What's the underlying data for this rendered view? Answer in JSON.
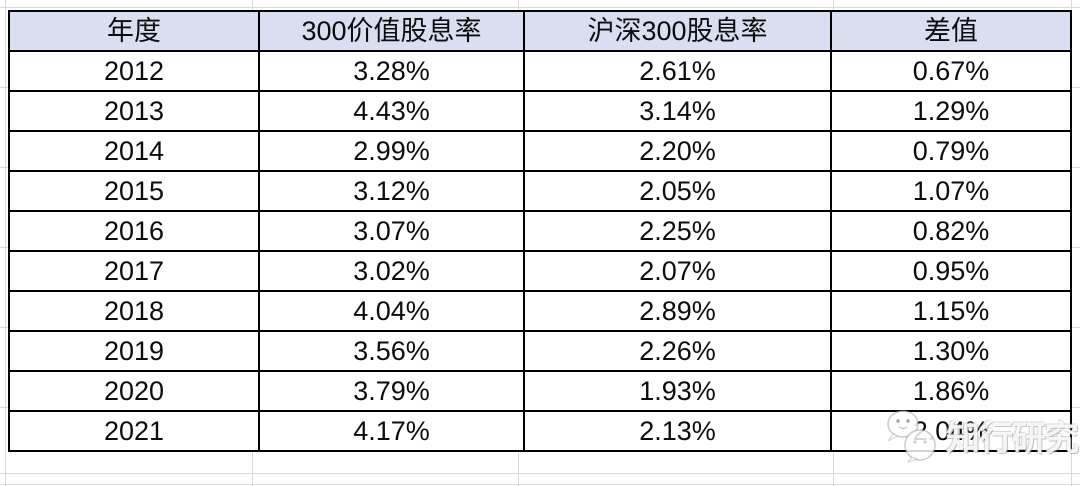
{
  "table": {
    "headers": [
      "年度",
      "300价值股息率",
      "沪深300股息率",
      "差值"
    ],
    "rows": [
      {
        "year": "2012",
        "value300": "3.28%",
        "csi300": "2.61%",
        "diff": "0.67%"
      },
      {
        "year": "2013",
        "value300": "4.43%",
        "csi300": "3.14%",
        "diff": "1.29%"
      },
      {
        "year": "2014",
        "value300": "2.99%",
        "csi300": "2.20%",
        "diff": "0.79%"
      },
      {
        "year": "2015",
        "value300": "3.12%",
        "csi300": "2.05%",
        "diff": "1.07%"
      },
      {
        "year": "2016",
        "value300": "3.07%",
        "csi300": "2.25%",
        "diff": "0.82%"
      },
      {
        "year": "2017",
        "value300": "3.02%",
        "csi300": "2.07%",
        "diff": "0.95%"
      },
      {
        "year": "2018",
        "value300": "4.04%",
        "csi300": "2.89%",
        "diff": "1.15%"
      },
      {
        "year": "2019",
        "value300": "3.56%",
        "csi300": "2.26%",
        "diff": "1.30%"
      },
      {
        "year": "2020",
        "value300": "3.79%",
        "csi300": "1.93%",
        "diff": "1.86%"
      },
      {
        "year": "2021",
        "value300": "4.17%",
        "csi300": "2.13%",
        "diff": "2.04%"
      }
    ]
  },
  "watermark": {
    "text": "知行研究",
    "icon": "wechat-icon"
  },
  "colors": {
    "header_bg": "#d9dff0",
    "border": "#000000",
    "gridline": "#d9d9d9",
    "watermark": "#ffffff"
  },
  "chart_data": {
    "type": "table",
    "columns": [
      "年度",
      "300价值股息率",
      "沪深300股息率",
      "差值"
    ],
    "years": [
      2012,
      2013,
      2014,
      2015,
      2016,
      2017,
      2018,
      2019,
      2020,
      2021
    ],
    "unit": "%",
    "series": [
      {
        "name": "300价值股息率",
        "values": [
          3.28,
          4.43,
          2.99,
          3.12,
          3.07,
          3.02,
          4.04,
          3.56,
          3.79,
          4.17
        ]
      },
      {
        "name": "沪深300股息率",
        "values": [
          2.61,
          3.14,
          2.2,
          2.05,
          2.25,
          2.07,
          2.89,
          2.26,
          1.93,
          2.13
        ]
      },
      {
        "name": "差值",
        "values": [
          0.67,
          1.29,
          0.79,
          1.07,
          0.82,
          0.95,
          1.15,
          1.3,
          1.86,
          2.04
        ]
      }
    ]
  }
}
